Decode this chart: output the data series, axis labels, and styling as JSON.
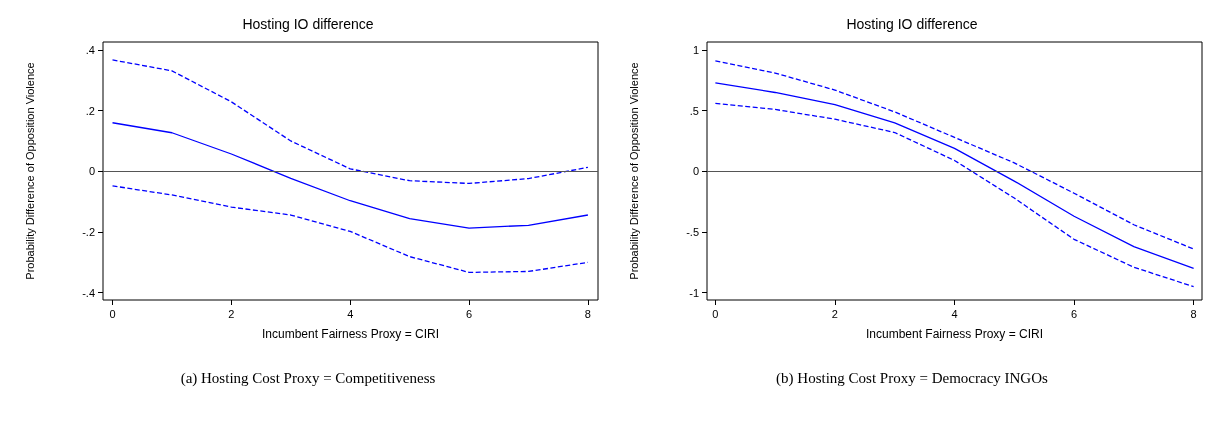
{
  "chart_data": [
    {
      "type": "line",
      "title": "Hosting IO difference",
      "xlabel": "Incumbent Fairness Proxy = CIRI",
      "ylabel": "Probability Difference of Opposition Violence",
      "annotations": [
        "(a) Hosting Cost Proxy = Competitiveness"
      ],
      "x": [
        0,
        1,
        2,
        3,
        4,
        5,
        6,
        7,
        8
      ],
      "series": [
        {
          "color": "#0000ff",
          "line_style": "dashed",
          "values": [
            0.367,
            0.331,
            0.229,
            0.1,
            0.008,
            -0.031,
            -0.04,
            -0.024,
            0.013
          ]
        },
        {
          "color": "#0000ff",
          "line_style": "solid",
          "values": [
            0.16,
            0.127,
            0.057,
            -0.023,
            -0.097,
            -0.156,
            -0.187,
            -0.178,
            -0.144
          ]
        },
        {
          "color": "#0000ff",
          "line_style": "dashed",
          "values": [
            -0.048,
            -0.078,
            -0.118,
            -0.144,
            -0.198,
            -0.281,
            -0.333,
            -0.33,
            -0.3
          ]
        }
      ],
      "xlim": [
        -0.16,
        8.17
      ],
      "ylim": [
        -0.424,
        0.426
      ],
      "xticks": [
        {
          "value": 0,
          "label": "0"
        },
        2,
        4,
        6,
        8
      ],
      "yticks": [
        {
          "value": -0.4,
          "label": "-.4"
        },
        {
          "value": -0.2,
          "label": "-.2"
        },
        {
          "value": 0,
          "label": "0"
        },
        {
          "value": 0.2,
          "label": ".2"
        },
        {
          "value": 0.4,
          "label": ".4"
        }
      ],
      "ref_lines": [
        {
          "axis": "y",
          "value": 0,
          "color": "#555555"
        }
      ],
      "grid": false,
      "marker": "none"
    },
    {
      "type": "line",
      "title": "Hosting IO difference",
      "xlabel": "Incumbent Fairness Proxy = CIRI",
      "ylabel": "Probability Difference of Opposition Violence",
      "annotations": [
        "(b) Hosting Cost Proxy = Democracy INGOs"
      ],
      "x": [
        0,
        1,
        2,
        3,
        4,
        5,
        6,
        7,
        8
      ],
      "series": [
        {
          "color": "#0000ff",
          "line_style": "dashed",
          "values": [
            0.91,
            0.81,
            0.67,
            0.49,
            0.28,
            0.07,
            -0.18,
            -0.44,
            -0.64
          ]
        },
        {
          "color": "#0000ff",
          "line_style": "solid",
          "values": [
            0.73,
            0.65,
            0.55,
            0.4,
            0.19,
            -0.08,
            -0.37,
            -0.62,
            -0.8
          ]
        },
        {
          "color": "#0000ff",
          "line_style": "dashed",
          "values": [
            0.56,
            0.51,
            0.43,
            0.32,
            0.09,
            -0.22,
            -0.56,
            -0.79,
            -0.95
          ]
        }
      ],
      "xlim": [
        -0.14,
        8.14
      ],
      "ylim": [
        -1.06,
        1.066
      ],
      "xticks": [
        {
          "value": 0,
          "label": "0"
        },
        2,
        4,
        6,
        8
      ],
      "yticks": [
        {
          "value": -1,
          "label": "-1"
        },
        {
          "value": -0.5,
          "label": "-.5"
        },
        {
          "value": 0,
          "label": "0"
        },
        {
          "value": 0.5,
          "label": ".5"
        },
        1
      ],
      "ref_lines": [
        {
          "axis": "y",
          "value": 0,
          "color": "#555555"
        }
      ],
      "grid": false,
      "marker": "none"
    }
  ]
}
